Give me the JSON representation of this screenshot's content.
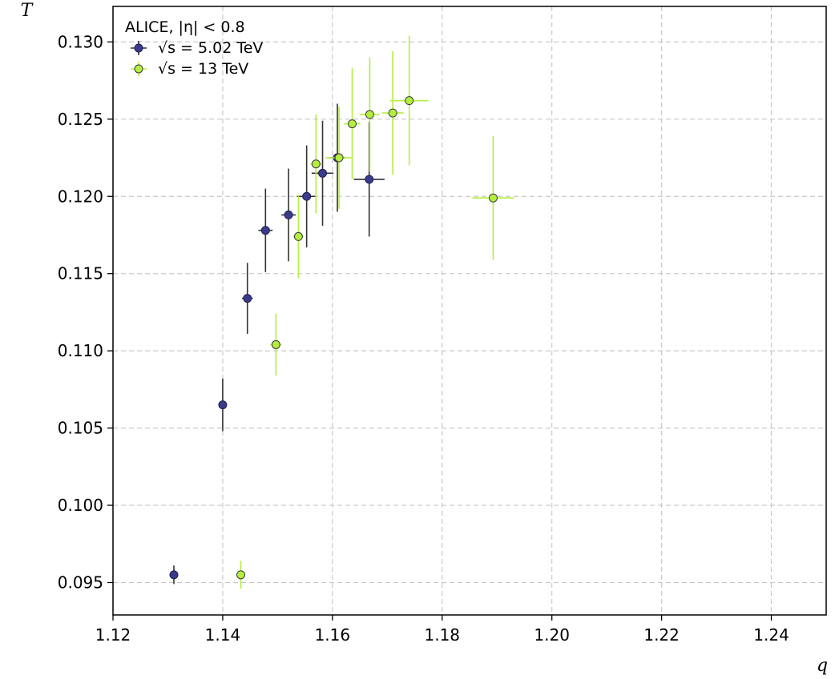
{
  "chart_data": {
    "type": "scatter",
    "xlabel": "q",
    "ylabel": "T",
    "xlim": [
      1.12,
      1.25
    ],
    "ylim": [
      0.0929,
      0.1323
    ],
    "xticks": [
      "1.12",
      "1.14",
      "1.16",
      "1.18",
      "1.20",
      "1.22",
      "1.24"
    ],
    "yticks": [
      "0.095",
      "0.100",
      "0.105",
      "0.110",
      "0.115",
      "0.120",
      "0.125",
      "0.130"
    ],
    "grid": true,
    "legend": {
      "placement": "top-left",
      "title": "ALICE, |η| < 0.8",
      "entries": [
        "√s = 5.02 TeV",
        "√s = 13 TeV"
      ]
    },
    "series": [
      {
        "name": "√s = 5.02 TeV",
        "color": "#3b3b8c",
        "edge_color": "#1e1e50",
        "points": [
          {
            "x": 1.1311,
            "y": 0.0955,
            "xerr": 0.0,
            "yerr": 0.0006
          },
          {
            "x": 1.14,
            "y": 0.1065,
            "xerr": 0.0004,
            "yerr": 0.0017
          },
          {
            "x": 1.1445,
            "y": 0.1134,
            "xerr": 0.001,
            "yerr": 0.0023
          },
          {
            "x": 1.1478,
            "y": 0.1178,
            "xerr": 0.0013,
            "yerr": 0.0027
          },
          {
            "x": 1.152,
            "y": 0.1188,
            "xerr": 0.0013,
            "yerr": 0.003
          },
          {
            "x": 1.1553,
            "y": 0.12,
            "xerr": 0.0018,
            "yerr": 0.0033
          },
          {
            "x": 1.1582,
            "y": 0.1215,
            "xerr": 0.002,
            "yerr": 0.0034
          },
          {
            "x": 1.1609,
            "y": 0.1225,
            "xerr": 0.0015,
            "yerr": 0.0035
          },
          {
            "x": 1.1667,
            "y": 0.1211,
            "xerr": 0.0028,
            "yerr": 0.0037
          }
        ]
      },
      {
        "name": "√s = 13 TeV",
        "color": "#b4ee3e",
        "edge_color": "#3a3a3a",
        "points": [
          {
            "x": 1.1433,
            "y": 0.0955,
            "xerr": 0.0,
            "yerr": 0.0009
          },
          {
            "x": 1.1497,
            "y": 0.1104,
            "xerr": 0.001,
            "yerr": 0.002
          },
          {
            "x": 1.1538,
            "y": 0.1174,
            "xerr": 0.001,
            "yerr": 0.0027
          },
          {
            "x": 1.157,
            "y": 0.1221,
            "xerr": 0.001,
            "yerr": 0.0032
          },
          {
            "x": 1.1612,
            "y": 0.1225,
            "xerr": 0.0025,
            "yerr": 0.0033
          },
          {
            "x": 1.1636,
            "y": 0.1247,
            "xerr": 0.0015,
            "yerr": 0.0036
          },
          {
            "x": 1.1668,
            "y": 0.1253,
            "xerr": 0.0018,
            "yerr": 0.0037
          },
          {
            "x": 1.171,
            "y": 0.1254,
            "xerr": 0.002,
            "yerr": 0.004
          },
          {
            "x": 1.174,
            "y": 0.1262,
            "xerr": 0.0035,
            "yerr": 0.0042
          },
          {
            "x": 1.1893,
            "y": 0.1199,
            "xerr": 0.0038,
            "yerr": 0.004
          }
        ]
      }
    ]
  }
}
